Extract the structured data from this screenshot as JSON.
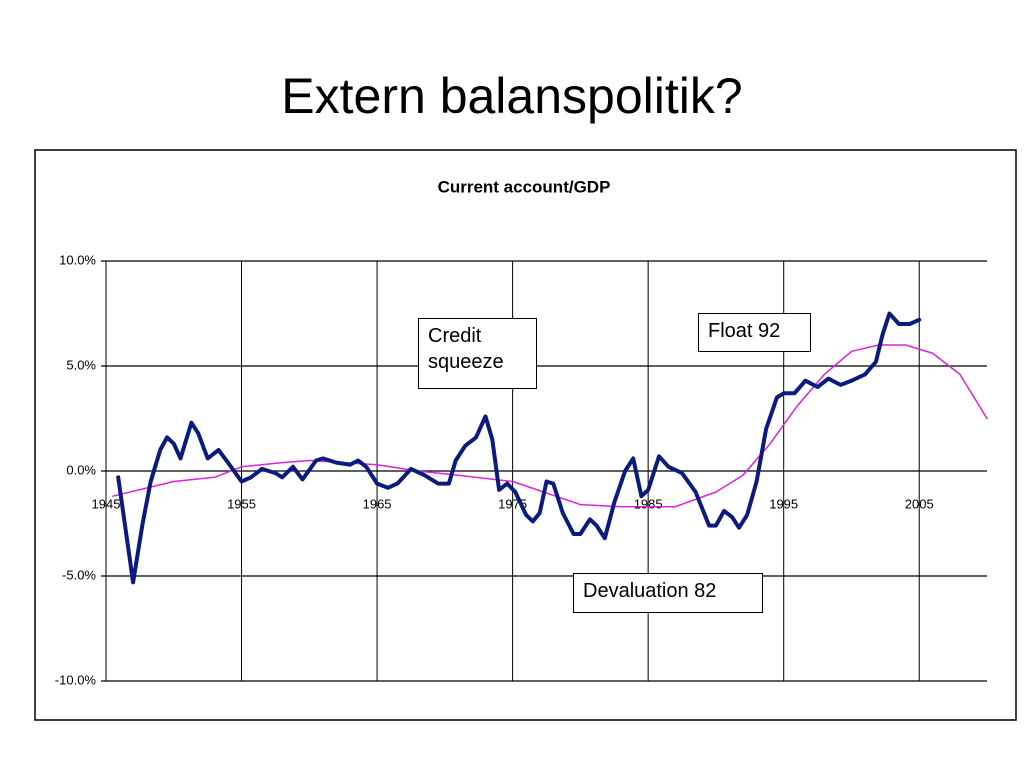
{
  "title": "Extern balanspolitik?",
  "chart_data": {
    "type": "line",
    "title": "Current account/GDP",
    "xlim": [
      1945,
      2010
    ],
    "xticks": [
      1945,
      1955,
      1965,
      1975,
      1985,
      1995,
      2005
    ],
    "ylim": [
      -10,
      10
    ],
    "yticks": [
      {
        "value": -10,
        "label": "-10.0%"
      },
      {
        "value": -5,
        "label": "-5.0%"
      },
      {
        "value": 0,
        "label": "0.0%"
      },
      {
        "value": 5,
        "label": "5.0%"
      },
      {
        "value": 10,
        "label": "10.0%"
      }
    ],
    "grid": true,
    "series": [
      {
        "color": "#0a1a80",
        "width": 4,
        "x": [
          1945.9,
          1947.0,
          1947.7,
          1948.3,
          1949.0,
          1949.5,
          1950.0,
          1950.5,
          1951.3,
          1951.8,
          1952.5,
          1953.3,
          1954.0,
          1955.0,
          1955.7,
          1956.5,
          1957.5,
          1958.0,
          1958.8,
          1959.5,
          1960.5,
          1961.0,
          1962.0,
          1963.0,
          1963.6,
          1964.2,
          1965.0,
          1965.8,
          1966.5,
          1967.5,
          1968.5,
          1969.5,
          1970.3,
          1970.8,
          1971.5,
          1972.3,
          1973.0,
          1973.5,
          1974.0,
          1974.6,
          1975.2,
          1976.0,
          1976.5,
          1977.0,
          1977.5,
          1978.0,
          1978.7,
          1979.5,
          1980.0,
          1980.7,
          1981.2,
          1981.8,
          1982.5,
          1983.3,
          1983.9,
          1984.5,
          1985.0,
          1985.8,
          1986.5,
          1987.5,
          1988.5,
          1989.5,
          1990.0,
          1990.6,
          1991.2,
          1991.7,
          1992.3,
          1993.0,
          1993.7,
          1994.5,
          1995.0,
          1995.8,
          1996.6,
          1997.5,
          1998.3,
          1999.2,
          2000.0,
          2001.0,
          2001.8,
          2002.3,
          2002.8,
          2003.5,
          2004.3,
          2005.0
        ],
        "values": [
          -0.3,
          -5.3,
          -2.5,
          -0.5,
          1.0,
          1.6,
          1.3,
          0.6,
          2.3,
          1.8,
          0.6,
          1.0,
          0.4,
          -0.5,
          -0.3,
          0.1,
          -0.1,
          -0.3,
          0.2,
          -0.4,
          0.5,
          0.6,
          0.4,
          0.3,
          0.5,
          0.2,
          -0.6,
          -0.8,
          -0.6,
          0.1,
          -0.2,
          -0.6,
          -0.6,
          0.5,
          1.2,
          1.6,
          2.6,
          1.5,
          -0.9,
          -0.6,
          -1.0,
          -2.1,
          -2.4,
          -2.0,
          -0.5,
          -0.6,
          -2.0,
          -3.0,
          -3.0,
          -2.3,
          -2.6,
          -3.2,
          -1.5,
          0.0,
          0.6,
          -1.2,
          -0.9,
          0.7,
          0.2,
          -0.1,
          -1.0,
          -2.6,
          -2.6,
          -1.9,
          -2.2,
          -2.7,
          -2.1,
          -0.5,
          2.0,
          3.5,
          3.7,
          3.7,
          4.3,
          4.0,
          4.4,
          4.1,
          4.3,
          4.6,
          5.2,
          6.5,
          7.5,
          7.0,
          7.0,
          7.2
        ]
      },
      {
        "color": "#e020e0",
        "width": 1.5,
        "x": [
          1945.5,
          1950,
          1953,
          1955,
          1958,
          1960,
          1965,
          1968,
          1971,
          1975,
          1980,
          1983,
          1987,
          1990,
          1992,
          1994,
          1996,
          1998,
          2000,
          2002,
          2004,
          2006,
          2008,
          2010
        ],
        "values": [
          -1.2,
          -0.5,
          -0.3,
          0.2,
          0.4,
          0.5,
          0.3,
          0.0,
          -0.2,
          -0.5,
          -1.6,
          -1.7,
          -1.7,
          -1.0,
          -0.2,
          1.3,
          3.1,
          4.6,
          5.7,
          6.0,
          6.0,
          5.6,
          4.6,
          2.5
        ]
      }
    ],
    "annotations": [
      {
        "text": "Credit squeeze"
      },
      {
        "text": "Float 92"
      },
      {
        "text": "Devaluation 82"
      }
    ]
  }
}
